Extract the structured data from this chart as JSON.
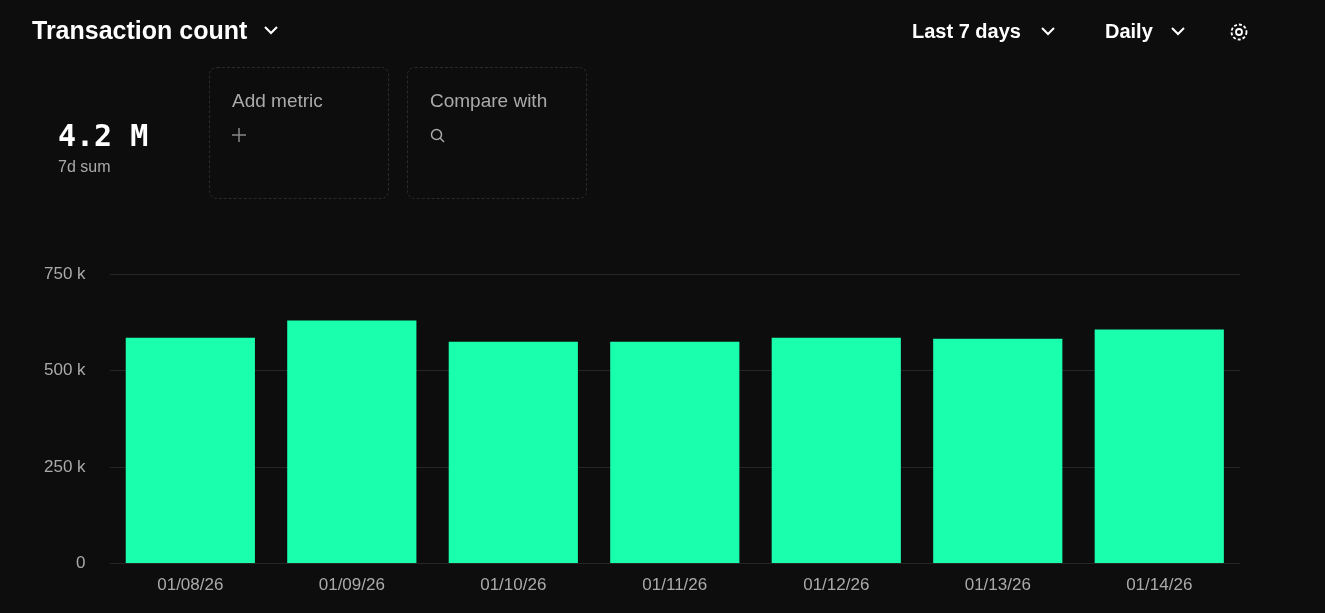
{
  "chart_data": {
    "type": "bar",
    "title": "Transaction count",
    "annotations": [
      "Last 7 days",
      "Daily",
      "4.2 M",
      "7d sum",
      "Add metric",
      "Compare with"
    ],
    "categories": [
      "01/08/26",
      "01/09/26",
      "01/10/26",
      "01/11/26",
      "01/12/26",
      "01/13/26",
      "01/14/26"
    ],
    "series": [
      {
        "color": "#1affae",
        "values": [
          585000,
          630000,
          575000,
          575000,
          585000,
          583000,
          607000
        ]
      }
    ],
    "ylim": [
      0,
      750000
    ],
    "yticks": [
      {
        "value": 0,
        "label": "0"
      },
      {
        "value": 250000,
        "label": "250 k"
      },
      {
        "value": 500000,
        "label": "500 k"
      },
      {
        "value": 750000,
        "label": "750 k"
      }
    ],
    "grid": "y",
    "legend": false
  }
}
